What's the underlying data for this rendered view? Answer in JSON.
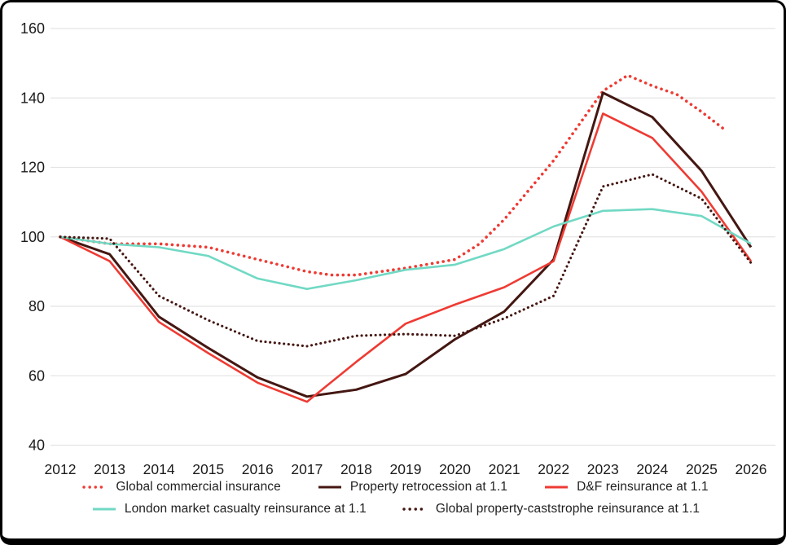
{
  "frame": {
    "background": "#ffffff",
    "border_color": "#000000"
  },
  "chart_data": {
    "type": "line",
    "title": "",
    "xlabel": "",
    "ylabel": "",
    "grid": "horizontal",
    "grid_color": "#e4e4e4",
    "axis_text_color": "#1b1b1b",
    "x_axis": {
      "labels": [
        "2012",
        "2013",
        "2014",
        "2015",
        "2016",
        "2017",
        "2018",
        "2019",
        "2020",
        "2021",
        "2022",
        "2023",
        "2024",
        "2025",
        "2026"
      ]
    },
    "y_axis": {
      "ticks": [
        160,
        140,
        120,
        100,
        80,
        60,
        40
      ],
      "min": 40,
      "max": 160
    },
    "series": [
      {
        "name": "Global commercial insurance",
        "color": "#ee3b33",
        "style": "dotted",
        "x": [
          2012,
          2013,
          2014,
          2015,
          2016,
          2017,
          2017.5,
          2018,
          2019,
          2020,
          2020.5,
          2021,
          2022,
          2023,
          2023.5,
          2024,
          2024.5,
          2025,
          2025.5
        ],
        "values": [
          100,
          98,
          98,
          97,
          93.5,
          90,
          89,
          89,
          91,
          93.5,
          98,
          105,
          122,
          142,
          146.5,
          143.5,
          141,
          136,
          130.5
        ]
      },
      {
        "name": "Property retrocession at 1.1",
        "color": "#441712",
        "style": "solid",
        "x": [
          2012,
          2013,
          2014,
          2015,
          2016,
          2017,
          2018,
          2019,
          2020,
          2021,
          2022,
          2023,
          2024,
          2025,
          2026
        ],
        "values": [
          100,
          95,
          77,
          68,
          59.5,
          54,
          56,
          60.5,
          70.5,
          78.5,
          93.5,
          141.5,
          134.5,
          119,
          97
        ]
      },
      {
        "name": "D&F reinsurance at 1.1",
        "color": "#ee3b33",
        "style": "solid",
        "x": [
          2012,
          2013,
          2014,
          2015,
          2016,
          2017,
          2018,
          2019,
          2020,
          2021,
          2022,
          2023,
          2024,
          2025,
          2026
        ],
        "values": [
          100,
          93,
          75.5,
          66.5,
          58,
          52.5,
          64,
          75,
          80.5,
          85.5,
          93,
          135.5,
          128.5,
          113,
          93
        ]
      },
      {
        "name": "London market casualty reinsurance at 1.1",
        "color": "#71d9c4",
        "style": "solid",
        "x": [
          2012,
          2013,
          2014,
          2015,
          2016,
          2017,
          2018,
          2019,
          2020,
          2021,
          2022,
          2023,
          2024,
          2025,
          2026
        ],
        "values": [
          100,
          98,
          97,
          94.5,
          88,
          85,
          87.5,
          90.5,
          92,
          96.5,
          103,
          107.5,
          108,
          106,
          98
        ]
      },
      {
        "name": "Global property-caststrophe reinsurance at 1.1",
        "color": "#441712",
        "style": "dotted",
        "x": [
          2012,
          2013,
          2014,
          2015,
          2016,
          2017,
          2018,
          2019,
          2020,
          2021,
          2022,
          2023,
          2024,
          2025,
          2026
        ],
        "values": [
          100,
          99.5,
          83,
          76,
          70,
          68.5,
          71.5,
          72,
          71.5,
          76.5,
          83,
          114.5,
          118,
          111,
          92.5
        ]
      }
    ],
    "legend": {
      "position": "bottom",
      "rows": [
        [
          0,
          1,
          2
        ],
        [
          3,
          4
        ]
      ]
    }
  }
}
